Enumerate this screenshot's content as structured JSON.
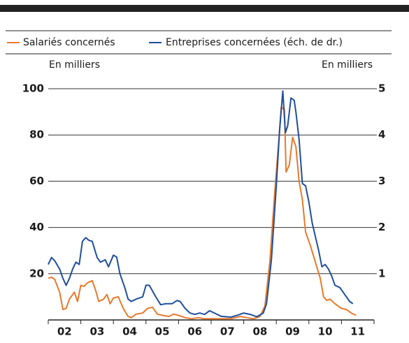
{
  "chart_data": {
    "type": "line",
    "legend_labels_note_free": true,
    "ylabel": "En milliers",
    "y2label": "En milliers",
    "xlim": [
      2002,
      2012
    ],
    "ylim": [
      0,
      100
    ],
    "y2lim": [
      0,
      5
    ],
    "yticks": [
      20,
      40,
      60,
      80,
      100
    ],
    "y2ticks": [
      1,
      2,
      3,
      4,
      5
    ],
    "xticks": [
      {
        "value": 2002.5,
        "label": "02"
      },
      {
        "value": 2003.5,
        "label": "03"
      },
      {
        "value": 2004.5,
        "label": "04"
      },
      {
        "value": 2005.5,
        "label": "05"
      },
      {
        "value": 2006.5,
        "label": "06"
      },
      {
        "value": 2007.5,
        "label": "07"
      },
      {
        "value": 2008.5,
        "label": "08"
      },
      {
        "value": 2009.5,
        "label": "09"
      },
      {
        "value": 2010.5,
        "label": "10"
      },
      {
        "value": 2011.5,
        "label": "11"
      }
    ],
    "grid": true,
    "series": [
      {
        "name": "Salariés concernés",
        "color": "#e8792b",
        "x": [
          2002.0,
          2002.1,
          2002.2,
          2002.35,
          2002.45,
          2002.55,
          2002.65,
          2002.8,
          2002.9,
          2003.0,
          2003.1,
          2003.2,
          2003.35,
          2003.45,
          2003.55,
          2003.7,
          2003.8,
          2003.9,
          2004.0,
          2004.15,
          2004.3,
          2004.45,
          2004.55,
          2004.7,
          2004.9,
          2005.05,
          2005.2,
          2005.35,
          2005.5,
          2005.7,
          2005.85,
          2006.0,
          2006.2,
          2006.4,
          2006.6,
          2006.8,
          2007.0,
          2007.3,
          2007.6,
          2007.9,
          2008.1,
          2008.3,
          2008.5,
          2008.65,
          2008.8,
          2008.95,
          2009.1,
          2009.15,
          2009.25,
          2009.3,
          2009.4,
          2009.5,
          2009.6,
          2009.7,
          2009.8,
          2009.9,
          2010.05,
          2010.2,
          2010.35,
          2010.45,
          2010.55,
          2010.65,
          2010.8,
          2011.0,
          2011.15,
          2011.3,
          2011.45
        ],
        "values": [
          18,
          18.5,
          17.5,
          12,
          4.5,
          5,
          9,
          12,
          8,
          15,
          14.5,
          16,
          17,
          13,
          8,
          9,
          11,
          7,
          9.5,
          10,
          5,
          1.5,
          1,
          2.5,
          3,
          5,
          5.5,
          2.5,
          2,
          1.5,
          2.5,
          2,
          1,
          0.5,
          1,
          0.5,
          0.5,
          0.5,
          0.5,
          1.5,
          1,
          0.5,
          1.5,
          6,
          25,
          55,
          82,
          92,
          91,
          64,
          67,
          79,
          75,
          60,
          52,
          38,
          32,
          25,
          18,
          10,
          8.5,
          9,
          7,
          5,
          4.5,
          3,
          2
        ]
      },
      {
        "name": "Entreprises concernées (éch. de dr.)",
        "color": "#1f4e9c",
        "axis": "y2",
        "x": [
          2002.0,
          2002.1,
          2002.2,
          2002.35,
          2002.45,
          2002.55,
          2002.65,
          2002.75,
          2002.85,
          2002.95,
          2003.05,
          2003.15,
          2003.25,
          2003.35,
          2003.5,
          2003.6,
          2003.75,
          2003.85,
          2004.0,
          2004.1,
          2004.2,
          2004.35,
          2004.45,
          2004.55,
          2004.7,
          2004.9,
          2005.0,
          2005.1,
          2005.3,
          2005.45,
          2005.6,
          2005.8,
          2005.95,
          2006.05,
          2006.2,
          2006.35,
          2006.5,
          2006.65,
          2006.8,
          2006.95,
          2007.1,
          2007.3,
          2007.6,
          2007.8,
          2008.0,
          2008.2,
          2008.4,
          2008.6,
          2008.7,
          2008.85,
          2009.0,
          2009.1,
          2009.2,
          2009.28,
          2009.35,
          2009.45,
          2009.55,
          2009.6,
          2009.7,
          2009.8,
          2009.9,
          2010.0,
          2010.1,
          2010.2,
          2010.3,
          2010.4,
          2010.5,
          2010.6,
          2010.7,
          2010.8,
          2010.95,
          2011.1,
          2011.25,
          2011.35
        ],
        "values": [
          1.2,
          1.35,
          1.28,
          1.1,
          0.9,
          0.75,
          0.9,
          1.1,
          1.25,
          1.2,
          1.7,
          1.78,
          1.72,
          1.7,
          1.35,
          1.25,
          1.3,
          1.15,
          1.4,
          1.36,
          1.0,
          0.7,
          0.45,
          0.4,
          0.45,
          0.5,
          0.75,
          0.75,
          0.5,
          0.33,
          0.35,
          0.35,
          0.42,
          0.4,
          0.25,
          0.15,
          0.12,
          0.15,
          0.12,
          0.2,
          0.15,
          0.08,
          0.06,
          0.1,
          0.15,
          0.12,
          0.07,
          0.15,
          0.35,
          1.3,
          2.9,
          4.1,
          4.95,
          4.05,
          4.2,
          4.8,
          4.75,
          4.5,
          3.9,
          2.95,
          2.9,
          2.55,
          2.1,
          1.8,
          1.5,
          1.15,
          1.2,
          1.1,
          0.95,
          0.75,
          0.7,
          0.55,
          0.4,
          0.35
        ]
      }
    ]
  }
}
